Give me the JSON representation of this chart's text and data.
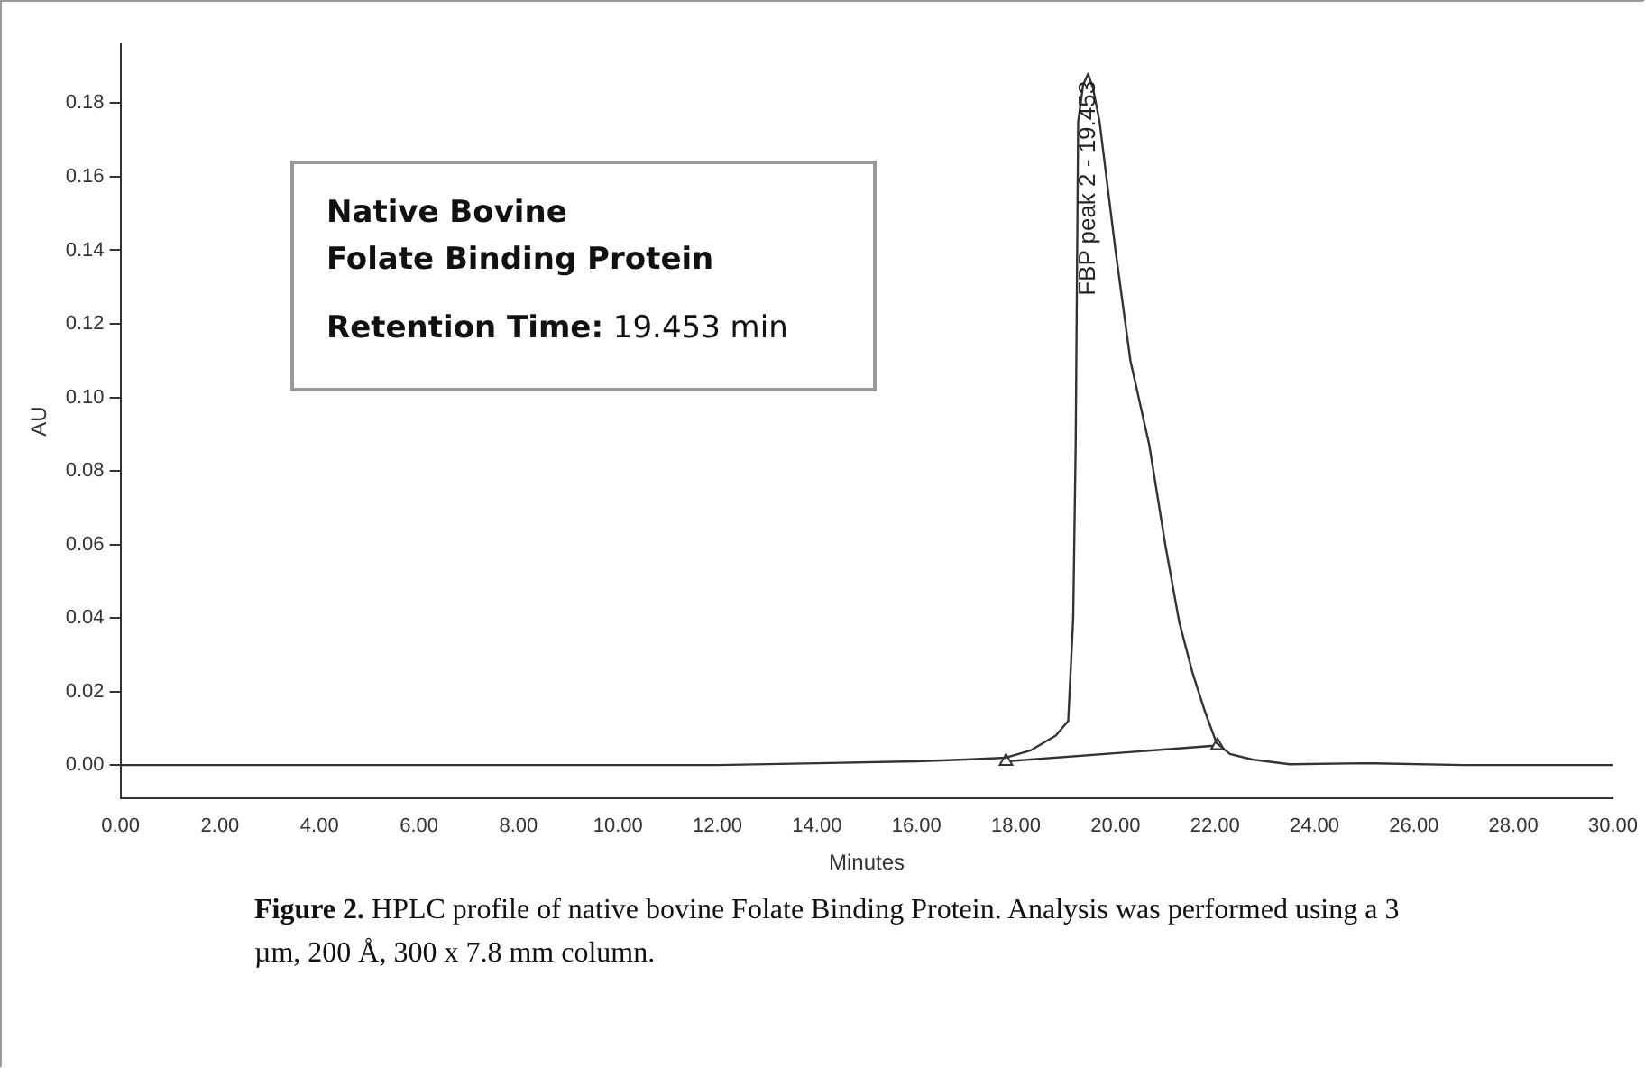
{
  "chart_data": {
    "type": "line",
    "xlabel": "Minutes",
    "ylabel": "AU",
    "xlim": [
      0,
      30
    ],
    "ylim": [
      -0.009,
      0.196
    ],
    "xticks": [
      {
        "value": 0,
        "label": "0.00"
      },
      {
        "value": 2,
        "label": "2.00"
      },
      {
        "value": 4,
        "label": "4.00"
      },
      {
        "value": 6,
        "label": "6.00"
      },
      {
        "value": 8,
        "label": "8.00"
      },
      {
        "value": 10,
        "label": "10.00"
      },
      {
        "value": 12,
        "label": "12.00"
      },
      {
        "value": 14,
        "label": "14.00"
      },
      {
        "value": 16,
        "label": "16.00"
      },
      {
        "value": 18,
        "label": "18.00"
      },
      {
        "value": 20,
        "label": "20.00"
      },
      {
        "value": 22,
        "label": "22.00"
      },
      {
        "value": 24,
        "label": "24.00"
      },
      {
        "value": 26,
        "label": "26.00"
      },
      {
        "value": 28,
        "label": "28.00"
      },
      {
        "value": 30,
        "label": "30.00"
      }
    ],
    "yticks": [
      {
        "value": 0,
        "label": "0.00"
      },
      {
        "value": 0.02,
        "label": "0.02"
      },
      {
        "value": 0.04,
        "label": "0.04"
      },
      {
        "value": 0.06,
        "label": "0.06"
      },
      {
        "value": 0.08,
        "label": "0.08"
      },
      {
        "value": 0.1,
        "label": "0.10"
      },
      {
        "value": 0.12,
        "label": "0.12"
      },
      {
        "value": 0.14,
        "label": "0.14"
      },
      {
        "value": 0.16,
        "label": "0.16"
      },
      {
        "value": 0.18,
        "label": "0.18"
      }
    ],
    "grid": false,
    "legend": false,
    "marker": "none",
    "line_style": "solid",
    "series": [
      {
        "color": "#333333",
        "x": [
          0,
          4,
          8,
          12,
          14,
          16,
          17,
          17.8,
          18.3,
          18.8,
          19.05,
          19.15,
          19.2,
          19.25,
          19.35,
          19.45,
          19.55,
          19.68,
          20.0,
          20.3,
          20.68,
          21.0,
          21.28,
          21.55,
          21.8,
          22.03,
          22.3,
          22.75,
          23.5,
          25,
          27,
          30
        ],
        "values": [
          0,
          0,
          0,
          0,
          0.0005,
          0.001,
          0.0015,
          0.002,
          0.004,
          0.008,
          0.012,
          0.04,
          0.087,
          0.175,
          0.185,
          0.188,
          0.184,
          0.175,
          0.14,
          0.11,
          0.087,
          0.06,
          0.039,
          0.025,
          0.0145,
          0.006,
          0.003,
          0.0015,
          0.0002,
          0.0005,
          0,
          0
        ]
      },
      {
        "color": "#333333",
        "marker": "triangle",
        "x": [
          17.8,
          22.05
        ],
        "values": [
          0.001,
          0.0053
        ]
      }
    ],
    "annotations": [
      {
        "text": "FBP peak 2 - 19.453",
        "x": 19.453,
        "y": 0.188
      },
      "Native Bovine",
      "Folate Binding Protein",
      "Retention Time: 19.453 min",
      "Figure 2. HPLC profile of native bovine Folate Binding Protein. Analysis was performed using a 3 µm, 200 Å, 300 x 7.8 mm column."
    ]
  }
}
